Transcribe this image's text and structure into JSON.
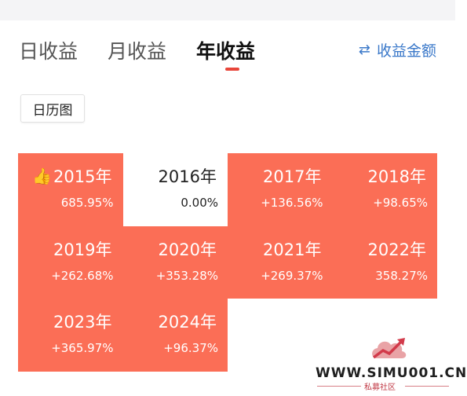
{
  "tabs": [
    {
      "label": "日收益"
    },
    {
      "label": "月收益"
    },
    {
      "label": "年收益"
    }
  ],
  "active_tab": 2,
  "switch": {
    "icon": "swap-arrows-icon",
    "label": "收益金额"
  },
  "calendar_button": {
    "label": "日历图"
  },
  "colors": {
    "positive": "#fb6e56",
    "accent": "#e8463a",
    "link": "#3a78c9"
  },
  "years": [
    {
      "year": "2015年",
      "return": "685.95%",
      "icon": "thumbs-up-icon"
    },
    {
      "year": "2016年",
      "return": "0.00%"
    },
    {
      "year": "2017年",
      "return": "+136.56%"
    },
    {
      "year": "2018年",
      "return": "+98.65%"
    },
    {
      "year": "2019年",
      "return": "+262.68%"
    },
    {
      "year": "2020年",
      "return": "+353.28%"
    },
    {
      "year": "2021年",
      "return": "+269.37%"
    },
    {
      "year": "2022年",
      "return": "358.27%"
    },
    {
      "year": "2023年",
      "return": "+365.97%"
    },
    {
      "year": "2024年",
      "return": "+96.37%"
    }
  ],
  "watermark": {
    "text": "WWW.SIMU001.CN",
    "sub": "私募社区"
  }
}
